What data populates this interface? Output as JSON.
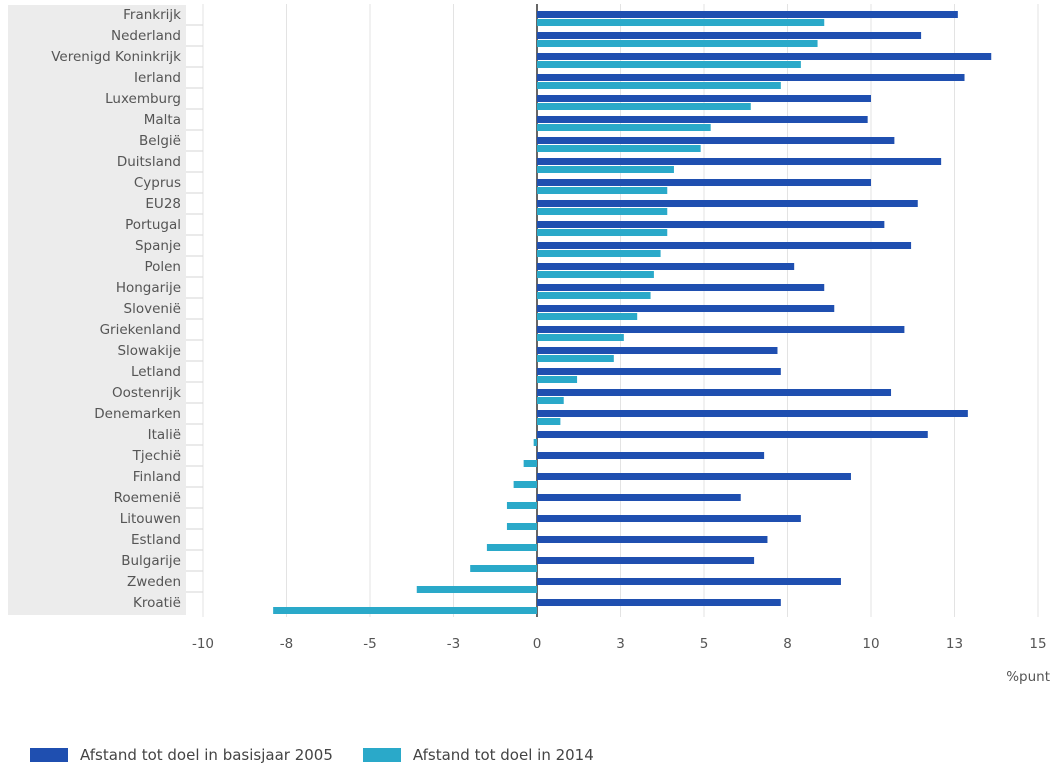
{
  "chart_data": {
    "type": "bar",
    "orientation": "horizontal",
    "categories": [
      "Frankrijk",
      "Nederland",
      "Verenigd Koninkrijk",
      "Ierland",
      "Luxemburg",
      "Malta",
      "België",
      "Duitsland",
      "Cyprus",
      "EU28",
      "Portugal",
      "Spanje",
      "Polen",
      "Hongarije",
      "Slovenië",
      "Griekenland",
      "Slowakije",
      "Letland",
      "Oostenrijk",
      "Denemarken",
      "Italië",
      "Tjechië",
      "Finland",
      "Roemenië",
      "Litouwen",
      "Estland",
      "Bulgarije",
      "Zweden",
      "Kroatië"
    ],
    "series": [
      {
        "name": "Afstand tot doel in basisjaar 2005",
        "color": "#1f4fb0",
        "values": [
          12.6,
          11.5,
          13.6,
          12.8,
          10.0,
          9.9,
          10.7,
          12.1,
          10.0,
          11.4,
          10.4,
          11.2,
          7.7,
          8.6,
          8.9,
          11.0,
          7.2,
          7.3,
          10.6,
          12.9,
          11.7,
          6.8,
          9.4,
          6.1,
          7.9,
          6.9,
          6.5,
          9.1,
          7.3
        ]
      },
      {
        "name": "Afstand tot doel in 2014",
        "color": "#2aa9c9",
        "values": [
          8.6,
          8.4,
          7.9,
          7.3,
          6.4,
          5.2,
          4.9,
          4.1,
          3.9,
          3.9,
          3.9,
          3.7,
          3.5,
          3.4,
          3.0,
          2.6,
          2.3,
          1.2,
          0.8,
          0.7,
          -0.1,
          -0.4,
          -0.7,
          -0.9,
          -0.9,
          -1.5,
          -2.0,
          -3.6,
          -7.9
        ]
      }
    ],
    "xlim": [
      -10,
      15
    ],
    "ticks": [
      -10,
      -8,
      -5,
      -3,
      0,
      3,
      5,
      8,
      10,
      13,
      15
    ],
    "tick_values": [
      -10,
      -7.5,
      -5,
      -2.5,
      0,
      2.5,
      5,
      7.5,
      10,
      12.5,
      15
    ],
    "xlabel": "%punt",
    "grid": true,
    "legend_position": "bottom-left"
  }
}
